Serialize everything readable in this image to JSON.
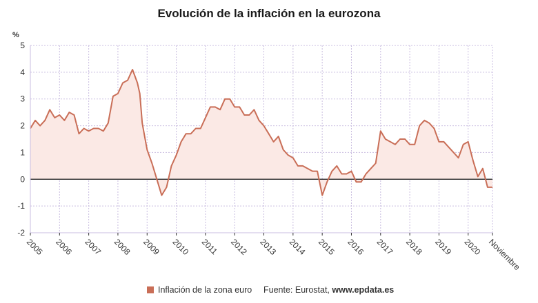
{
  "title": "Evolución de la inflación en la eurozona",
  "colors": {
    "line": "#c96e57",
    "fill": "#fbe9e5",
    "grid": "#c9bde0",
    "axis": "#333333",
    "zero_line": "#111111"
  },
  "legend": {
    "label": "Inflación de la zona euro"
  },
  "source": {
    "prefix": "Fuente: Eurostat,",
    "site": "www.epdata.es"
  },
  "chart_data": {
    "type": "area",
    "title": "Evolución de la inflación en la eurozona",
    "ylabel": "%",
    "xlabel": "",
    "ylim": [
      -2,
      5
    ],
    "yticks": [
      -2,
      -1,
      0,
      1,
      2,
      3,
      4,
      5
    ],
    "xlim": [
      "2005-01",
      "2020-11"
    ],
    "xticks": [
      "2005",
      "2006",
      "2007",
      "2008",
      "2009",
      "2010",
      "2011",
      "2012",
      "2013",
      "2014",
      "2015",
      "2016",
      "2017",
      "2018",
      "2019",
      "2020"
    ],
    "end_label": "Noviembre",
    "grid": true,
    "legend_position": "bottom",
    "series": [
      {
        "name": "Inflación de la zona euro",
        "points": [
          [
            "2005-01",
            1.9
          ],
          [
            "2005-03",
            2.2
          ],
          [
            "2005-05",
            2.0
          ],
          [
            "2005-07",
            2.2
          ],
          [
            "2005-09",
            2.6
          ],
          [
            "2005-11",
            2.3
          ],
          [
            "2006-01",
            2.4
          ],
          [
            "2006-03",
            2.2
          ],
          [
            "2006-05",
            2.5
          ],
          [
            "2006-07",
            2.4
          ],
          [
            "2006-09",
            1.7
          ],
          [
            "2006-11",
            1.9
          ],
          [
            "2007-01",
            1.8
          ],
          [
            "2007-03",
            1.9
          ],
          [
            "2007-05",
            1.9
          ],
          [
            "2007-07",
            1.8
          ],
          [
            "2007-09",
            2.1
          ],
          [
            "2007-11",
            3.1
          ],
          [
            "2008-01",
            3.2
          ],
          [
            "2008-03",
            3.6
          ],
          [
            "2008-05",
            3.7
          ],
          [
            "2008-07",
            4.1
          ],
          [
            "2008-09",
            3.6
          ],
          [
            "2008-10",
            3.2
          ],
          [
            "2008-11",
            2.1
          ],
          [
            "2008-12",
            1.6
          ],
          [
            "2009-01",
            1.1
          ],
          [
            "2009-03",
            0.6
          ],
          [
            "2009-05",
            0.0
          ],
          [
            "2009-07",
            -0.6
          ],
          [
            "2009-09",
            -0.3
          ],
          [
            "2009-11",
            0.5
          ],
          [
            "2010-01",
            0.9
          ],
          [
            "2010-03",
            1.4
          ],
          [
            "2010-05",
            1.7
          ],
          [
            "2010-07",
            1.7
          ],
          [
            "2010-09",
            1.9
          ],
          [
            "2010-11",
            1.9
          ],
          [
            "2011-01",
            2.3
          ],
          [
            "2011-03",
            2.7
          ],
          [
            "2011-05",
            2.7
          ],
          [
            "2011-07",
            2.6
          ],
          [
            "2011-09",
            3.0
          ],
          [
            "2011-11",
            3.0
          ],
          [
            "2012-01",
            2.7
          ],
          [
            "2012-03",
            2.7
          ],
          [
            "2012-05",
            2.4
          ],
          [
            "2012-07",
            2.4
          ],
          [
            "2012-09",
            2.6
          ],
          [
            "2012-11",
            2.2
          ],
          [
            "2013-01",
            2.0
          ],
          [
            "2013-03",
            1.7
          ],
          [
            "2013-05",
            1.4
          ],
          [
            "2013-07",
            1.6
          ],
          [
            "2013-09",
            1.1
          ],
          [
            "2013-11",
            0.9
          ],
          [
            "2014-01",
            0.8
          ],
          [
            "2014-03",
            0.5
          ],
          [
            "2014-05",
            0.5
          ],
          [
            "2014-07",
            0.4
          ],
          [
            "2014-09",
            0.3
          ],
          [
            "2014-11",
            0.3
          ],
          [
            "2015-01",
            -0.6
          ],
          [
            "2015-03",
            -0.1
          ],
          [
            "2015-05",
            0.3
          ],
          [
            "2015-07",
            0.5
          ],
          [
            "2015-09",
            0.2
          ],
          [
            "2015-11",
            0.2
          ],
          [
            "2016-01",
            0.3
          ],
          [
            "2016-03",
            -0.1
          ],
          [
            "2016-05",
            -0.1
          ],
          [
            "2016-07",
            0.2
          ],
          [
            "2016-09",
            0.4
          ],
          [
            "2016-11",
            0.6
          ],
          [
            "2017-01",
            1.8
          ],
          [
            "2017-03",
            1.5
          ],
          [
            "2017-05",
            1.4
          ],
          [
            "2017-07",
            1.3
          ],
          [
            "2017-09",
            1.5
          ],
          [
            "2017-11",
            1.5
          ],
          [
            "2018-01",
            1.3
          ],
          [
            "2018-03",
            1.3
          ],
          [
            "2018-05",
            2.0
          ],
          [
            "2018-07",
            2.2
          ],
          [
            "2018-09",
            2.1
          ],
          [
            "2018-11",
            1.9
          ],
          [
            "2019-01",
            1.4
          ],
          [
            "2019-03",
            1.4
          ],
          [
            "2019-05",
            1.2
          ],
          [
            "2019-07",
            1.0
          ],
          [
            "2019-09",
            0.8
          ],
          [
            "2019-11",
            1.3
          ],
          [
            "2020-01",
            1.4
          ],
          [
            "2020-03",
            0.7
          ],
          [
            "2020-05",
            0.1
          ],
          [
            "2020-07",
            0.4
          ],
          [
            "2020-09",
            -0.3
          ],
          [
            "2020-11",
            -0.3
          ]
        ]
      }
    ]
  }
}
